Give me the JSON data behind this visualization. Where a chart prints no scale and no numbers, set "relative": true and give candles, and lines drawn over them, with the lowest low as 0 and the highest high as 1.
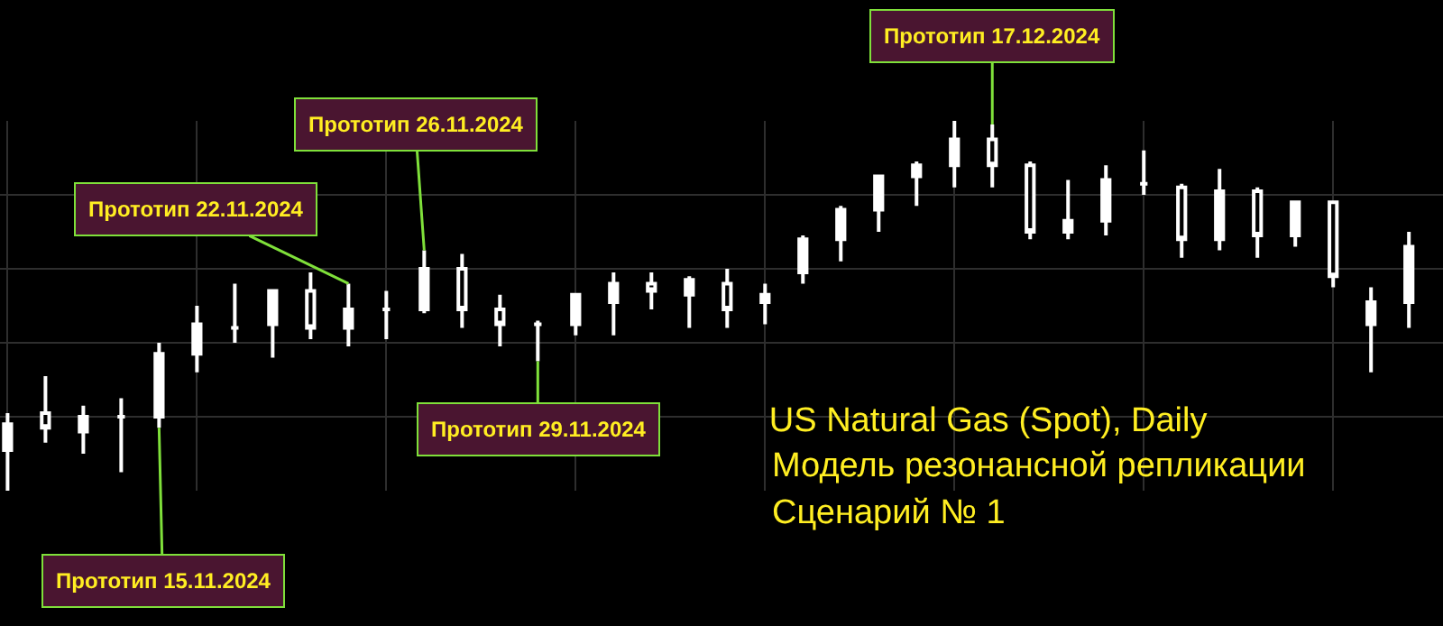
{
  "chart_data": {
    "type": "candlestick",
    "title": "US Natural Gas (Spot), Daily",
    "subtitle": "Модель резонансной репликации",
    "relative": true,
    "grid": true,
    "color": "#ffffff",
    "categories": [
      null,
      null,
      null,
      null,
      null,
      null,
      null,
      null,
      null,
      null,
      null,
      null,
      null,
      null,
      null,
      null,
      null,
      null,
      null,
      null,
      null,
      null,
      null,
      null,
      null,
      null,
      null,
      null,
      null,
      null,
      null,
      null,
      null,
      null,
      null,
      null,
      null,
      null
    ],
    "ohlc": [
      [
        0.11,
        0.21,
        0,
        0.18
      ],
      [
        0.21,
        0.31,
        0.13,
        0.17
      ],
      [
        0.16,
        0.23,
        0.1,
        0.2
      ],
      [
        0.2,
        0.25,
        0.05,
        0.2
      ],
      [
        0.2,
        0.4,
        0.17,
        0.37
      ],
      [
        0.37,
        0.5,
        0.32,
        0.45
      ],
      [
        0.44,
        0.56,
        0.4,
        0.44
      ],
      [
        0.45,
        0.54,
        0.36,
        0.54
      ],
      [
        0.54,
        0.59,
        0.41,
        0.44
      ],
      [
        0.44,
        0.56,
        0.39,
        0.49
      ],
      [
        0.49,
        0.54,
        0.41,
        0.49
      ],
      [
        0.49,
        0.65,
        0.48,
        0.6
      ],
      [
        0.6,
        0.64,
        0.44,
        0.49
      ],
      [
        0.49,
        0.53,
        0.39,
        0.45
      ],
      [
        0.45,
        0.46,
        0.35,
        0.45
      ],
      [
        0.45,
        0.53,
        0.42,
        0.53
      ],
      [
        0.51,
        0.59,
        0.42,
        0.56
      ],
      [
        0.56,
        0.59,
        0.49,
        0.54
      ],
      [
        0.53,
        0.58,
        0.44,
        0.57
      ],
      [
        0.56,
        0.6,
        0.44,
        0.49
      ],
      [
        0.51,
        0.56,
        0.45,
        0.53
      ],
      [
        0.59,
        0.69,
        0.56,
        0.68
      ],
      [
        0.68,
        0.77,
        0.62,
        0.76
      ],
      [
        0.76,
        0.85,
        0.7,
        0.85
      ],
      [
        0.85,
        0.89,
        0.77,
        0.88
      ],
      [
        0.88,
        1,
        0.82,
        0.95
      ],
      [
        0.95,
        0.99,
        0.82,
        0.88
      ],
      [
        0.88,
        0.89,
        0.68,
        0.7
      ],
      [
        0.7,
        0.84,
        0.68,
        0.73
      ],
      [
        0.73,
        0.88,
        0.69,
        0.84
      ],
      [
        0.83,
        0.92,
        0.8,
        0.83
      ],
      [
        0.82,
        0.83,
        0.63,
        0.68
      ],
      [
        0.68,
        0.87,
        0.65,
        0.81
      ],
      [
        0.81,
        0.82,
        0.63,
        0.69
      ],
      [
        0.69,
        0.78,
        0.66,
        0.78
      ],
      [
        0.78,
        0.78,
        0.55,
        0.58
      ],
      [
        0.45,
        0.55,
        0.32,
        0.51
      ],
      [
        0.51,
        0.7,
        0.44,
        0.66
      ]
    ],
    "annotations": [
      "Прототип 15.11.2024",
      "Прототип 22.11.2024",
      "Прототип 26.11.2024",
      "Прототип 29.11.2024",
      "Прототип 17.12.2024",
      "Сценарий № 1"
    ]
  }
}
